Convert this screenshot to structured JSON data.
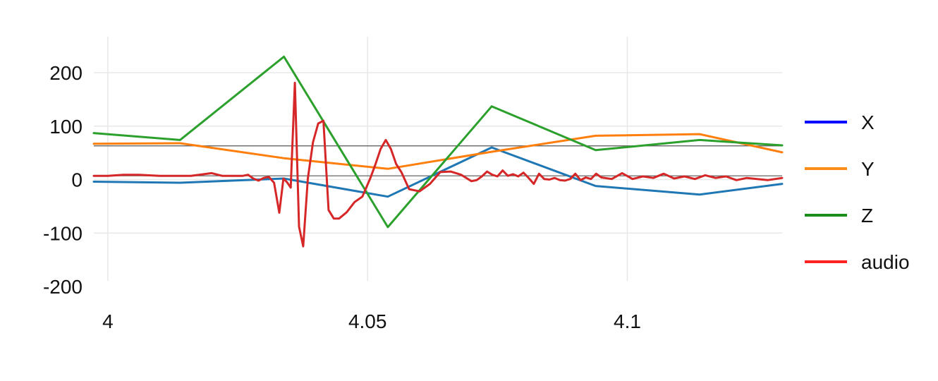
{
  "chart_data": {
    "type": "line",
    "x_ticks": [
      {
        "value": 4,
        "label": "4"
      },
      {
        "value": 4.05,
        "label": "4.05"
      },
      {
        "value": 4.1,
        "label": "4.1"
      }
    ],
    "y_ticks": [
      {
        "value": 200,
        "label": "200"
      },
      {
        "value": 100,
        "label": "100"
      },
      {
        "value": 0,
        "label": "0"
      },
      {
        "value": -100,
        "label": "-100"
      },
      {
        "value": -200,
        "label": "-200"
      }
    ],
    "xlim": [
      3.9973,
      4.1298
    ],
    "ylim": [
      -200,
      200
    ],
    "grid": true,
    "legend": {
      "placement": "right",
      "entries": [
        {
          "label": "X",
          "color": "#0000ff"
        },
        {
          "label": "Y",
          "color": "#ff8c1a"
        },
        {
          "label": "Z",
          "color": "#1a8c1a"
        },
        {
          "label": "audio",
          "color": "#ff2222"
        }
      ]
    },
    "reference_lines": [
      63,
      7
    ],
    "series": [
      {
        "name": "X",
        "color": "#1f77b4",
        "x": [
          3.9973,
          4.0139,
          4.0339,
          4.0539,
          4.0739,
          4.0939,
          4.1139,
          4.1298
        ],
        "y": [
          -4,
          -6,
          2,
          -32,
          60,
          -12,
          -28,
          -8
        ]
      },
      {
        "name": "Y",
        "color": "#ff7f0e",
        "x": [
          3.9973,
          4.0139,
          4.0339,
          4.0539,
          4.0739,
          4.0939,
          4.1139,
          4.1298
        ],
        "y": [
          67,
          68,
          40,
          20,
          52,
          82,
          85,
          51
        ]
      },
      {
        "name": "Z",
        "color": "#2ca02c",
        "x": [
          3.9973,
          4.0139,
          4.0339,
          4.0539,
          4.0739,
          4.0939,
          4.1139,
          4.1298
        ],
        "y": [
          87,
          74,
          230,
          -89,
          137,
          55,
          74,
          64
        ]
      },
      {
        "name": "audio",
        "color": "#d62728",
        "x": [
          3.9973,
          4.0,
          4.003,
          4.006,
          4.01,
          4.013,
          4.016,
          4.02,
          4.022,
          4.024,
          4.026,
          4.027,
          4.028,
          4.029,
          4.03,
          4.031,
          4.032,
          4.033,
          4.0338,
          4.0345,
          4.0352,
          4.036,
          4.0368,
          4.0376,
          4.0385,
          4.0395,
          4.0405,
          4.0415,
          4.0425,
          4.0435,
          4.0445,
          4.046,
          4.0475,
          4.049,
          4.0505,
          4.0515,
          4.0525,
          4.0535,
          4.0545,
          4.0555,
          4.0565,
          4.058,
          4.06,
          4.062,
          4.064,
          4.066,
          4.068,
          4.07,
          4.071,
          4.072,
          4.073,
          4.074,
          4.075,
          4.076,
          4.077,
          4.078,
          4.079,
          4.08,
          4.081,
          4.082,
          4.083,
          4.084,
          4.085,
          4.086,
          4.087,
          4.088,
          4.089,
          4.09,
          4.091,
          4.092,
          4.093,
          4.094,
          4.095,
          4.097,
          4.099,
          4.101,
          4.103,
          4.105,
          4.107,
          4.109,
          4.111,
          4.113,
          4.115,
          4.117,
          4.119,
          4.121,
          4.123,
          4.125,
          4.127,
          4.1298
        ],
        "y": [
          7,
          7,
          9,
          9,
          7,
          7,
          7,
          12,
          7,
          7,
          7,
          9,
          2,
          -2,
          3,
          5,
          -6,
          -62,
          2,
          -5,
          -15,
          181,
          -88,
          -125,
          2,
          70,
          105,
          110,
          -57,
          -73,
          -73,
          -61,
          -42,
          -32,
          2,
          28,
          57,
          74,
          57,
          29,
          14,
          -18,
          -22,
          -8,
          14,
          15,
          9,
          -3,
          -1,
          6,
          15,
          9,
          6,
          17,
          7,
          10,
          6,
          13,
          3,
          -8,
          11,
          1,
          0,
          3,
          -1,
          -2,
          1,
          11,
          -1,
          4,
          1,
          11,
          4,
          1,
          12,
          1,
          6,
          3,
          11,
          2,
          6,
          1,
          8,
          3,
          6,
          -1,
          3,
          1,
          -1,
          3
        ]
      }
    ]
  }
}
